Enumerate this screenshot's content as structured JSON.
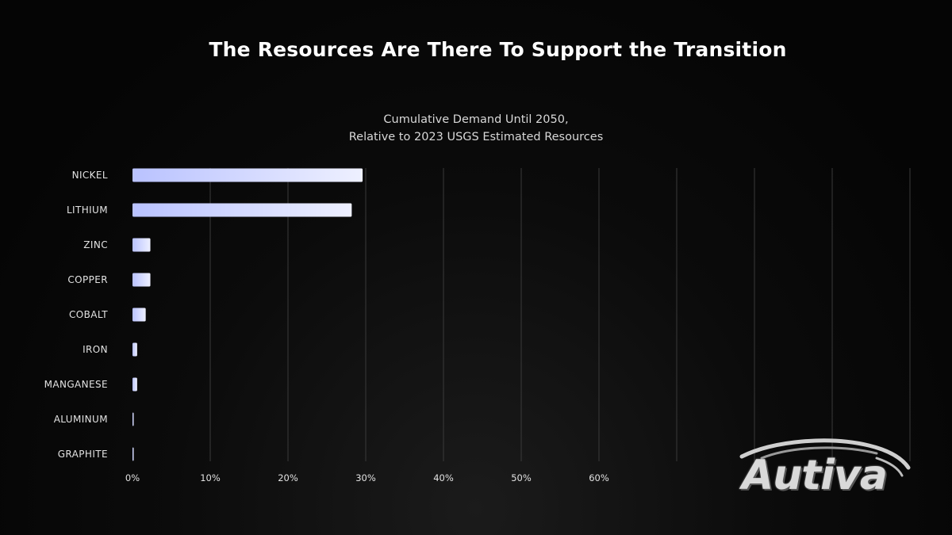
{
  "page": {
    "title": "The Resources Are There To Support the Transition"
  },
  "chart_data": {
    "type": "bar",
    "orientation": "horizontal",
    "title_lines": [
      "Cumulative Demand Until 2050,",
      "Relative to 2023 USGS Estimated Resources"
    ],
    "categories": [
      "NICKEL",
      "LITHIUM",
      "ZINC",
      "COPPER",
      "COBALT",
      "IRON",
      "MANGANESE",
      "ALUMINUM",
      "GRAPHITE"
    ],
    "values": [
      29.6,
      28.2,
      2.3,
      2.3,
      1.7,
      0.6,
      0.6,
      0.15,
      0.15
    ],
    "xlim": [
      0,
      100
    ],
    "xticks": [
      0,
      10,
      20,
      30,
      40,
      50,
      60
    ],
    "xtick_labels": [
      "0%",
      "10%",
      "20%",
      "30%",
      "40%",
      "50%",
      "60%"
    ],
    "gridlines": [
      10,
      20,
      30,
      40,
      50,
      60,
      70,
      80,
      90,
      100
    ],
    "grid": true,
    "bar_color": "#c9d0ff"
  },
  "logo": {
    "text": "Autiva"
  }
}
